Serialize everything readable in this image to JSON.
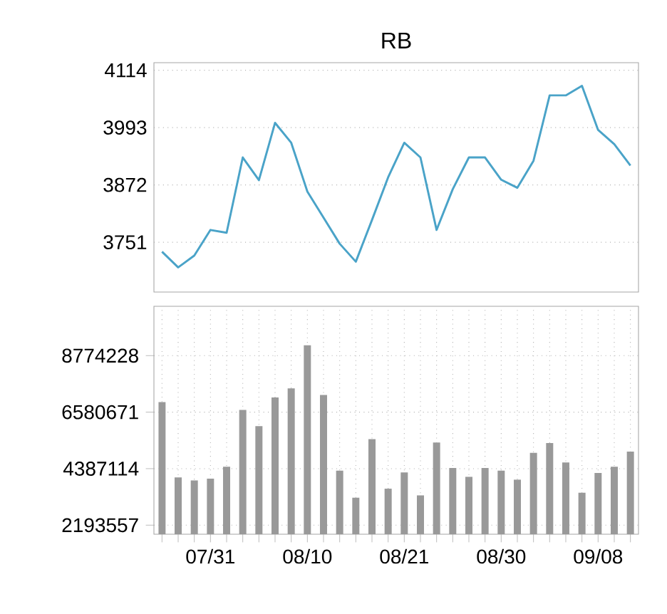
{
  "chart_data": [
    {
      "type": "line",
      "title": "RB",
      "values": [
        3731,
        3698,
        3723,
        3777,
        3771,
        3930,
        3882,
        4003,
        3961,
        3858,
        3803,
        3748,
        3710,
        3798,
        3888,
        3961,
        3930,
        3777,
        3863,
        3930,
        3930,
        3883,
        3866,
        3923,
        4061,
        4061,
        4081,
        3988,
        3958,
        3913
      ],
      "color": "#4aa3c8",
      "ylim": [
        3646,
        4130
      ],
      "yticks": [
        3751,
        3872,
        3993,
        4114
      ],
      "grid": "y",
      "tick_labels": "y"
    },
    {
      "type": "bar",
      "categories": [
        null,
        null,
        null,
        "07/31",
        null,
        null,
        null,
        null,
        null,
        "08/10",
        null,
        null,
        null,
        null,
        null,
        "08/21",
        null,
        null,
        null,
        null,
        null,
        "08/30",
        null,
        null,
        null,
        null,
        null,
        "09/08",
        null,
        null
      ],
      "values": [
        6970000,
        4050000,
        3930000,
        4000000,
        4460000,
        6670000,
        6040000,
        7150000,
        7500000,
        9180000,
        7250000,
        4310000,
        3260000,
        5530000,
        3610000,
        4240000,
        3350000,
        5400000,
        4410000,
        4070000,
        4410000,
        4310000,
        3960000,
        5000000,
        5380000,
        4630000,
        3450000,
        4220000,
        4460000,
        5050000
      ],
      "color": "#999999",
      "ylim": [
        1843000,
        10690000
      ],
      "yticks": [
        2193557,
        4387114,
        6580671,
        8774228
      ],
      "grid": true
    }
  ]
}
